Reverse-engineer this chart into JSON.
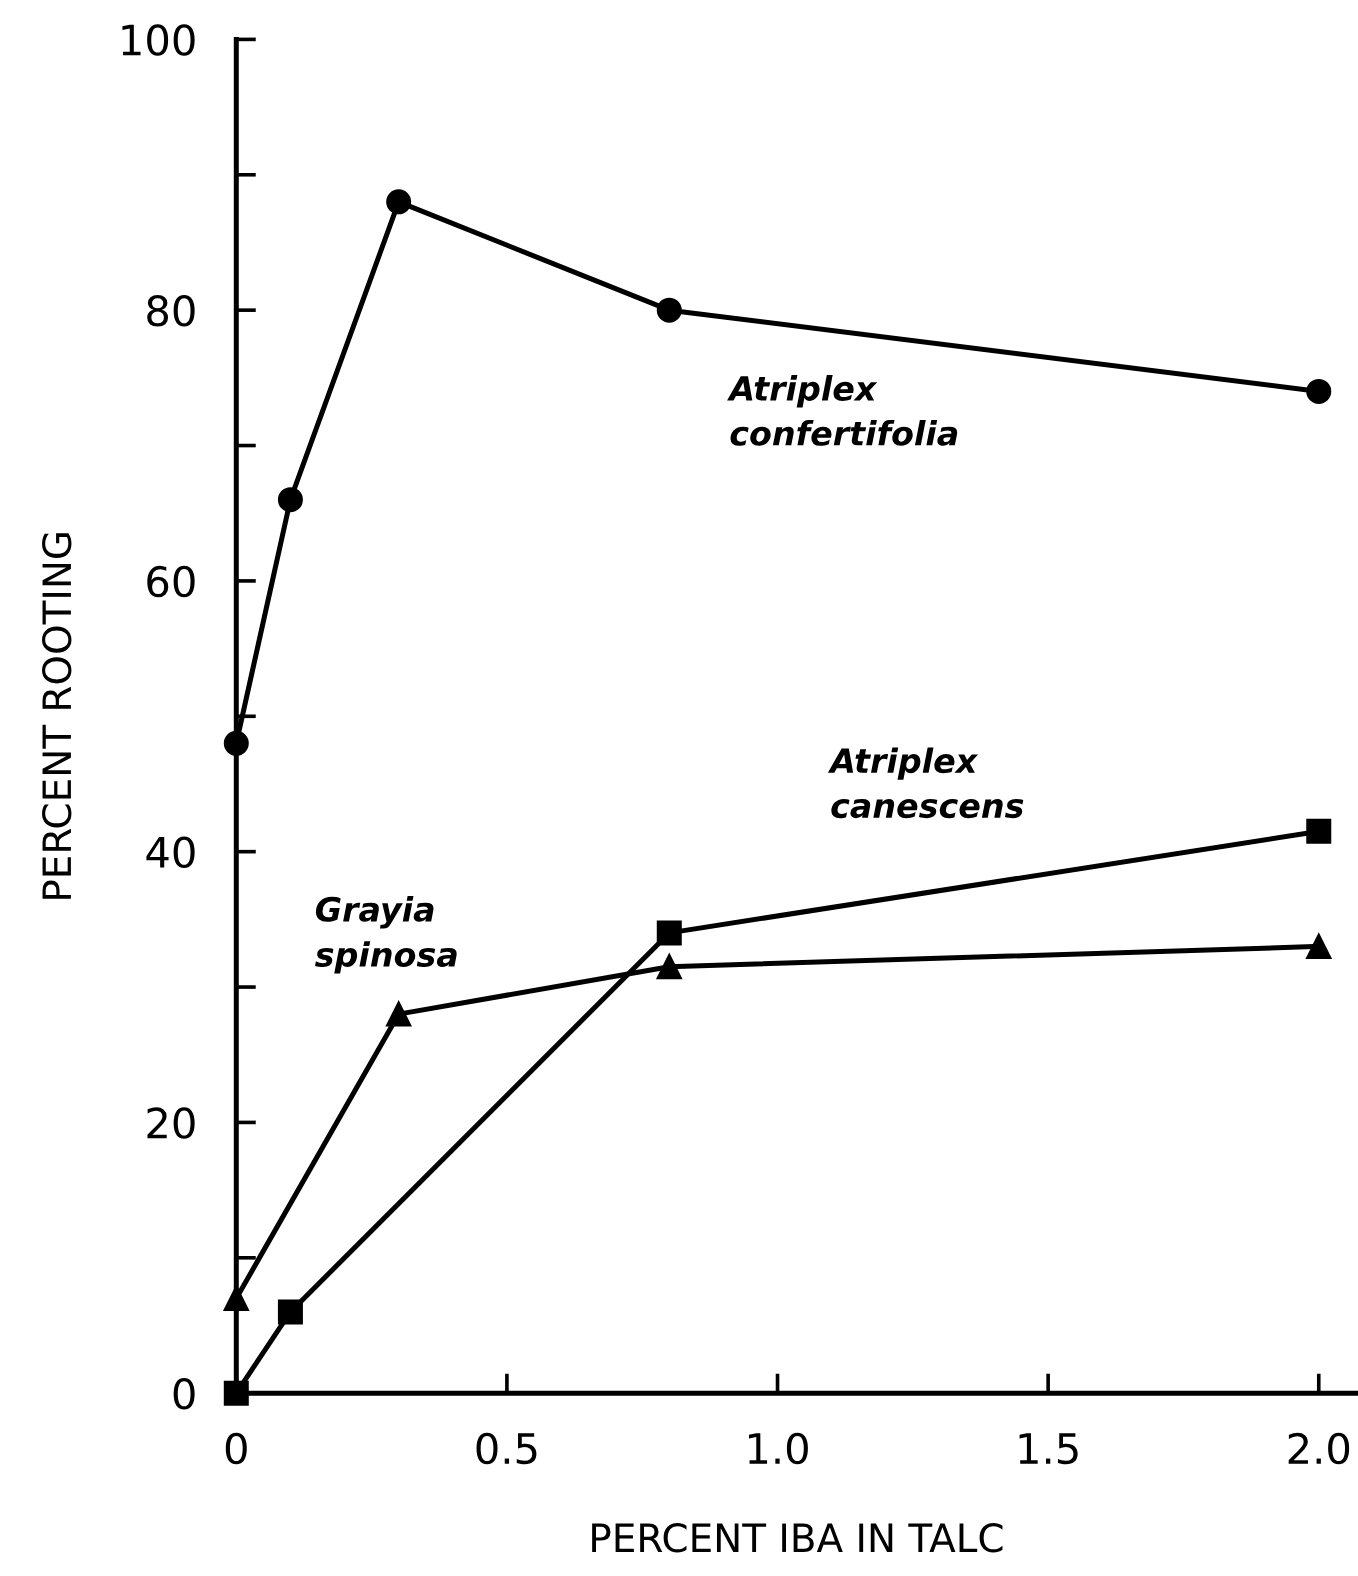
{
  "chart_data": {
    "type": "line",
    "xlabel": "PERCENT IBA IN TALC",
    "ylabel": "PERCENT ROOTING",
    "xlim": [
      0,
      2.07
    ],
    "ylim": [
      0,
      100
    ],
    "xticks": [
      {
        "value": 0,
        "label": "0"
      },
      0.5,
      {
        "value": 1,
        "label": "1.0"
      },
      1.5,
      {
        "value": 2,
        "label": "2.0"
      }
    ],
    "yticks": [
      0,
      {
        "value": 10,
        "label": null
      },
      20,
      {
        "value": 30,
        "label": null
      },
      40,
      {
        "value": 50,
        "label": null
      },
      60,
      {
        "value": 70,
        "label": null
      },
      80,
      {
        "value": 90,
        "label": null
      },
      100
    ],
    "x": [
      0,
      0.1,
      0.3,
      0.8,
      2.0
    ],
    "grid": false,
    "legend": false,
    "line_style": "solid",
    "series": [
      {
        "name": "Atriplex\nconfertifolia",
        "color": "#000000",
        "marker": "circle",
        "values": [
          48,
          66,
          88,
          80,
          74
        ]
      },
      {
        "name": "Atriplex\ncanescens",
        "color": "#000000",
        "marker": "square",
        "x": [
          0,
          0.1,
          0.8,
          2.0
        ],
        "values": [
          0,
          6,
          34,
          41.5
        ]
      },
      {
        "name": "Grayia\nspinosa",
        "color": "#000000",
        "marker": "triangle",
        "x": [
          0,
          0.3,
          0.8,
          2.0
        ],
        "values": [
          7,
          28,
          31.5,
          33
        ]
      }
    ]
  }
}
